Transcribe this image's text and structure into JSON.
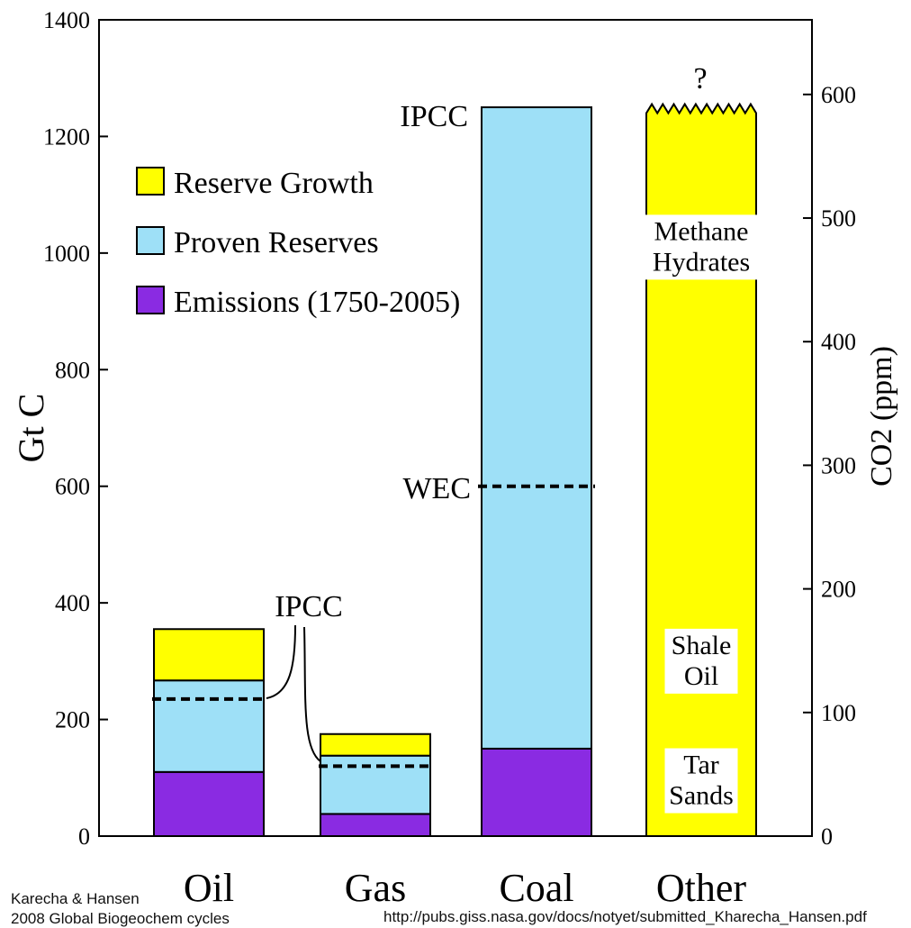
{
  "chart_data": {
    "type": "bar",
    "stacked": true,
    "categories": [
      "Oil",
      "Gas",
      "Coal",
      "Other"
    ],
    "series": [
      {
        "name": "Emissions (1750-2005)",
        "color": "#8a2be2",
        "values": [
          110,
          38,
          150,
          0
        ]
      },
      {
        "name": "Proven Reserves",
        "color": "#9ee0f7",
        "values": [
          157,
          100,
          1100,
          0
        ]
      },
      {
        "name": "Reserve Growth",
        "color": "#ffff00",
        "values": [
          88,
          37,
          0,
          1240
        ]
      }
    ],
    "ylabel": "Gt C",
    "y2label": "CO2 (ppm)",
    "ylim": [
      0,
      1400
    ],
    "yticks": [
      "0",
      "200",
      "400",
      "600",
      "800",
      "1000",
      "1200",
      "1400"
    ],
    "y2_per_y": 0.4717,
    "y2ticks": [
      "0",
      "100",
      "200",
      "300",
      "400",
      "500",
      "600"
    ],
    "legend_position": "top-left",
    "reference_lines": [
      {
        "category": "Oil",
        "value": 235,
        "label": "IPCC"
      },
      {
        "category": "Gas",
        "value": 120,
        "label": "IPCC"
      },
      {
        "category": "Coal",
        "value": 600,
        "label": "WEC"
      }
    ],
    "annotations": [
      {
        "text": "IPCC",
        "category": "Coal",
        "value": 1250
      },
      {
        "text": "?",
        "category": "Other",
        "value": 1310
      }
    ],
    "other_bar_labels": [
      {
        "lines": [
          "Methane",
          "Hydrates"
        ],
        "value": 1010
      },
      {
        "lines": [
          "Shale",
          "Oil"
        ],
        "value": 300
      },
      {
        "lines": [
          "Tar",
          "Sands"
        ],
        "value": 95
      }
    ]
  },
  "credits": {
    "authors": "Karecha & Hansen",
    "journal": "2008 Global Biogeochem cycles",
    "url": "http://pubs.giss.nasa.gov/docs/notyet/submitted_Kharecha_Hansen.pdf"
  }
}
